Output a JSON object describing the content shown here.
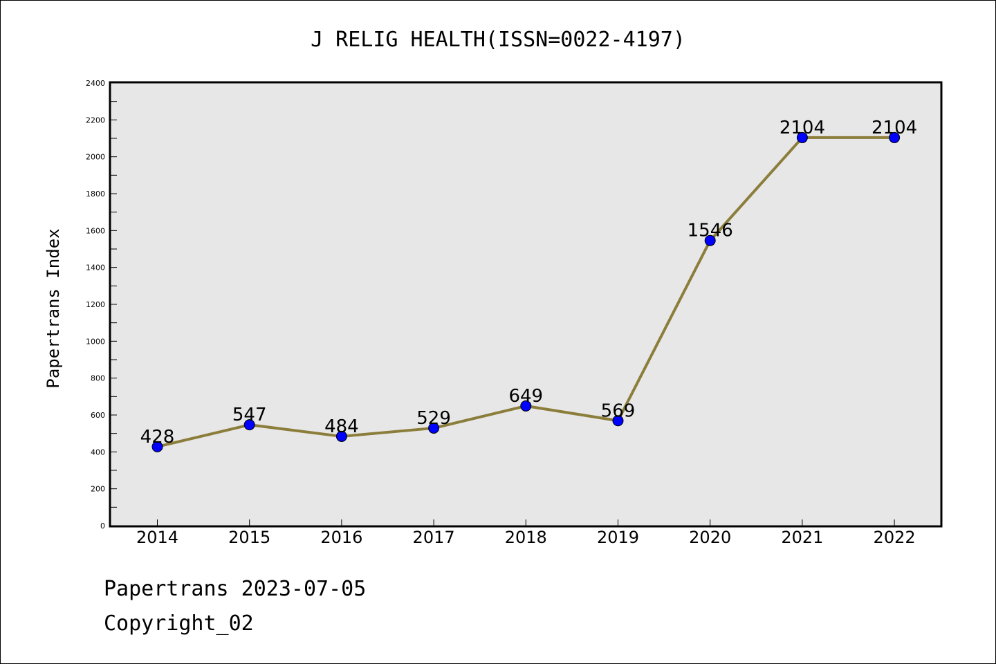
{
  "chart_data": {
    "type": "line",
    "title": "J RELIG HEALTH(ISSN=0022-4197)",
    "xlabel": "",
    "ylabel": "Papertrans Index",
    "categories": [
      "2014",
      "2015",
      "2016",
      "2017",
      "2018",
      "2019",
      "2020",
      "2021",
      "2022"
    ],
    "values": [
      428,
      547,
      484,
      529,
      649,
      569,
      1546,
      2104,
      2104
    ],
    "data_labels": [
      "428",
      "547",
      "484",
      "529",
      "649",
      "569",
      "1546",
      "2104",
      "2104"
    ],
    "ylim": [
      0,
      2400
    ],
    "yticks": [
      "0",
      "200",
      "400",
      "600",
      "800",
      "1000",
      "1200",
      "1400",
      "1600",
      "1800",
      "2000",
      "2200",
      "2400"
    ],
    "grid": false,
    "colors": {
      "line": "#8B7D3A",
      "marker": "#0000FF",
      "plot_bg": "#E7E7E7"
    }
  },
  "footer": {
    "line1": "Papertrans 2023-07-05",
    "line2": "Copyright_02"
  }
}
